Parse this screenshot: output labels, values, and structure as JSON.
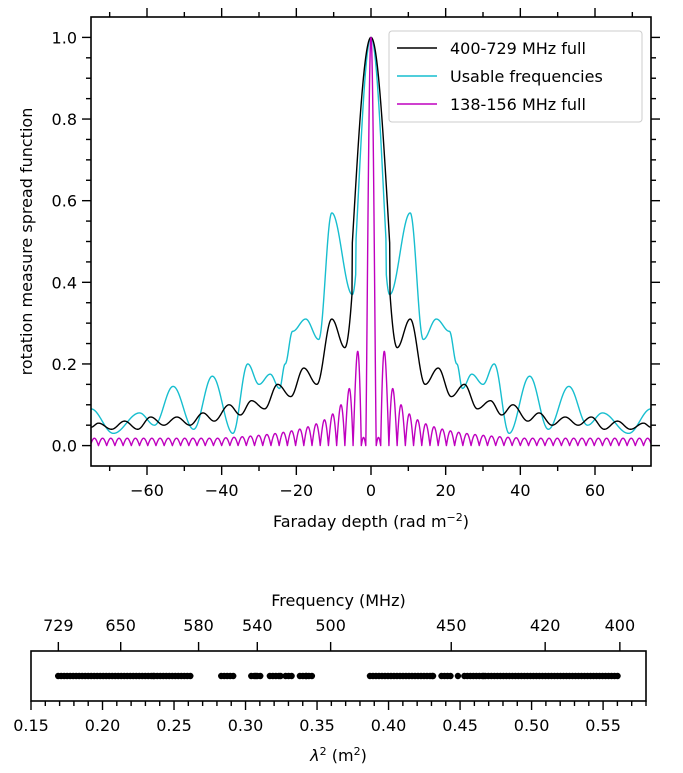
{
  "chart_data": [
    {
      "type": "line",
      "xlabel": "Faraday depth (rad m",
      "xlabel_sup": "−2",
      "xlabel_suffix": ")",
      "ylabel": "rotation measure spread function",
      "xlim": [
        -75,
        75
      ],
      "ylim": [
        -0.05,
        1.05
      ],
      "xticks": [
        -60,
        -40,
        -20,
        0,
        20,
        40,
        60
      ],
      "xtick_labels": [
        "−60",
        "−40",
        "−20",
        "0",
        "20",
        "40",
        "60"
      ],
      "yticks": [
        0.0,
        0.2,
        0.4,
        0.6,
        0.8,
        1.0
      ],
      "ytick_labels": [
        "0.0",
        "0.2",
        "0.4",
        "0.6",
        "0.8",
        "1.0"
      ],
      "grid": false,
      "legend_position": "top-right",
      "series": [
        {
          "name": "400-729 MHz full",
          "color": "#000000",
          "main_lobe_halfwidth": 5,
          "peaks": [
            [
              0,
              1.0
            ],
            [
              10.5,
              0.31
            ],
            [
              -10.5,
              0.31
            ],
            [
              18,
              0.19
            ],
            [
              -18,
              0.19
            ],
            [
              25,
              0.15
            ],
            [
              -25,
              0.15
            ],
            [
              32,
              0.11
            ],
            [
              -32,
              0.11
            ],
            [
              38,
              0.1
            ],
            [
              -38,
              0.1
            ],
            [
              45,
              0.08
            ],
            [
              -45,
              0.08
            ],
            [
              52,
              0.07
            ],
            [
              -52,
              0.07
            ],
            [
              59,
              0.07
            ],
            [
              -59,
              0.07
            ],
            [
              66,
              0.06
            ],
            [
              -66,
              0.06
            ],
            [
              73,
              0.055
            ],
            [
              -73,
              0.055
            ]
          ],
          "troughs": [
            [
              7,
              0.24
            ],
            [
              -7,
              0.24
            ],
            [
              14.5,
              0.15
            ],
            [
              -14.5,
              0.15
            ],
            [
              21.5,
              0.12
            ],
            [
              -21.5,
              0.12
            ],
            [
              28.5,
              0.09
            ],
            [
              -28.5,
              0.09
            ],
            [
              35,
              0.075
            ],
            [
              -35,
              0.075
            ],
            [
              42,
              0.06
            ],
            [
              -42,
              0.06
            ],
            [
              48.5,
              0.05
            ],
            [
              -48.5,
              0.05
            ],
            [
              55.5,
              0.05
            ],
            [
              -55.5,
              0.05
            ],
            [
              62.5,
              0.04
            ],
            [
              -62.5,
              0.04
            ],
            [
              69.5,
              0.04
            ],
            [
              -69.5,
              0.04
            ],
            [
              75,
              0.045
            ],
            [
              -75,
              0.045
            ]
          ]
        },
        {
          "name": "Usable frequencies",
          "color": "#17becf",
          "main_lobe_halfwidth": 4,
          "peaks": [
            [
              0,
              1.0
            ],
            [
              10.5,
              0.57
            ],
            [
              -10.5,
              0.57
            ],
            [
              17.5,
              0.31
            ],
            [
              -17.5,
              0.31
            ],
            [
              23,
              0.2
            ],
            [
              -23,
              0.2
            ],
            [
              27,
              0.175
            ],
            [
              -27,
              0.175
            ],
            [
              33,
              0.2
            ],
            [
              -33,
              0.2
            ],
            [
              42.5,
              0.17
            ],
            [
              -42.5,
              0.17
            ],
            [
              53,
              0.145
            ],
            [
              -53,
              0.145
            ],
            [
              62,
              0.08
            ],
            [
              -62,
              0.08
            ],
            [
              75,
              0.09
            ],
            [
              -75,
              0.09
            ]
          ],
          "troughs": [
            [
              5,
              0.37
            ],
            [
              -5,
              0.37
            ],
            [
              14,
              0.26
            ],
            [
              -14,
              0.26
            ],
            [
              21,
              0.28
            ],
            [
              -21,
              0.28
            ],
            [
              24.5,
              0.14
            ],
            [
              -24.5,
              0.14
            ],
            [
              30,
              0.15
            ],
            [
              -30,
              0.15
            ],
            [
              37,
              0.03
            ],
            [
              -37,
              0.03
            ],
            [
              47.5,
              0.04
            ],
            [
              -47.5,
              0.04
            ],
            [
              58,
              0.05
            ],
            [
              -58,
              0.05
            ],
            [
              69,
              0.03
            ],
            [
              -69,
              0.03
            ]
          ]
        },
        {
          "name": "138-156 MHz full",
          "color": "#bf00bf",
          "main_lobe_halfwidth": 1.4,
          "sidelobe_spacing": 2.2,
          "sidelobe_start_peak": 0.22,
          "sidelobe_far_peak": 0.018,
          "description_points": [
            [
              0,
              1.0
            ],
            [
              -3.8,
              0.22
            ],
            [
              3.8,
              0.22
            ],
            [
              -6,
              0.19
            ],
            [
              6,
              0.19
            ],
            [
              -8.2,
              0.15
            ],
            [
              8.2,
              0.15
            ],
            [
              -10.4,
              0.12
            ],
            [
              10.4,
              0.12
            ],
            [
              -14.8,
              0.08
            ],
            [
              14.8,
              0.08
            ],
            [
              -25,
              0.04
            ],
            [
              25,
              0.04
            ],
            [
              -40,
              0.025
            ],
            [
              40,
              0.025
            ],
            [
              -70,
              0.015
            ],
            [
              70,
              0.015
            ]
          ]
        }
      ]
    },
    {
      "type": "scatter",
      "top_axis_label": "Frequency (MHz)",
      "xlabel": "λ",
      "xlabel_sup": "2",
      "xlabel_suffix": " (m",
      "xlabel_sup2": "2",
      "xlabel_end": ")",
      "xlim": [
        0.15,
        0.58
      ],
      "xticks": [
        0.15,
        0.2,
        0.25,
        0.3,
        0.35,
        0.4,
        0.45,
        0.5,
        0.55
      ],
      "xtick_labels": [
        "0.15",
        "0.20",
        "0.25",
        "0.30",
        "0.35",
        "0.40",
        "0.45",
        "0.50",
        "0.55"
      ],
      "top_ticks": [
        729,
        650,
        580,
        540,
        500,
        450,
        420,
        400
      ],
      "top_tick_labels": [
        "729",
        "650",
        "580",
        "540",
        "500",
        "450",
        "420",
        "400"
      ],
      "point_color": "#000000",
      "lambda2_segments": [
        [
          0.169,
          0.263
        ],
        [
          0.283,
          0.292
        ],
        [
          0.304,
          0.312
        ],
        [
          0.317,
          0.324
        ],
        [
          0.328,
          0.333
        ],
        [
          0.338,
          0.348
        ],
        [
          0.387,
          0.433
        ],
        [
          0.437,
          0.444
        ],
        [
          0.453,
          0.561
        ]
      ],
      "lambda2_points": [
        0.2355,
        0.3072,
        0.3245,
        0.3425,
        0.4305,
        0.4485,
        0.4665
      ]
    }
  ]
}
